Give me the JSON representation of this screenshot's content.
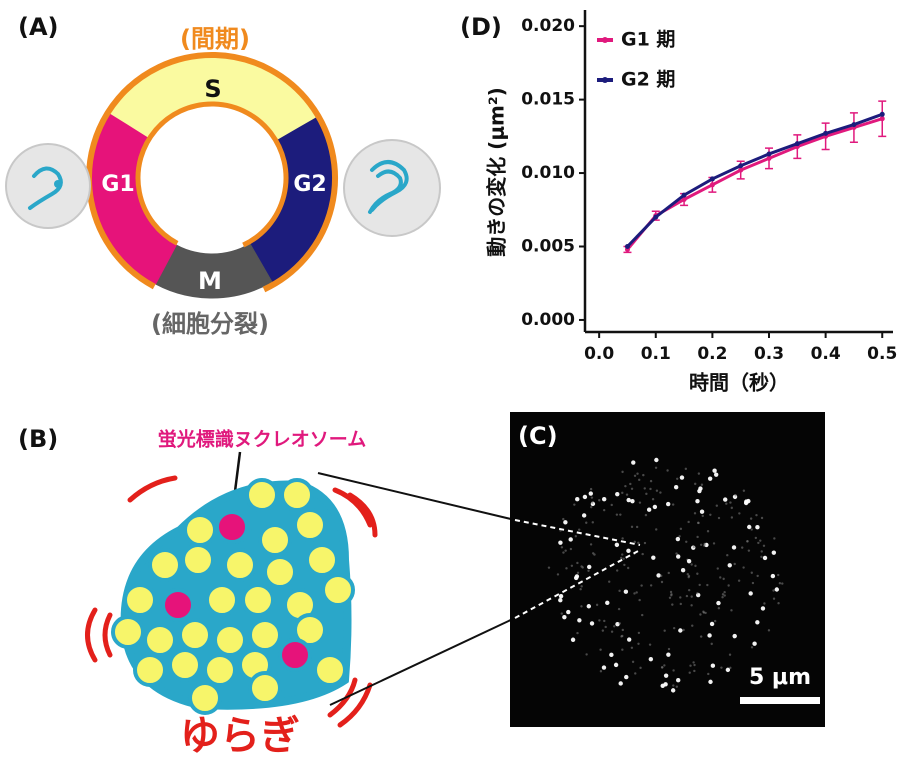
{
  "panels": {
    "a": {
      "label": "(A)",
      "interphase": "(間期)",
      "s": "S",
      "g1": "G1",
      "g2": "G2",
      "m": "M",
      "mitosis": "(細胞分裂)"
    },
    "b": {
      "label": "(B)",
      "callout": "蛍光標識ヌクレオソーム",
      "fluctuation": "ゆらぎ"
    },
    "c": {
      "label": "(C)",
      "scale_bar": "5 μm"
    }
  },
  "chart_data": {
    "type": "line",
    "panel_label": "(D)",
    "xlabel": "時間（秒）",
    "ylabel": "動きの変化 (μm²)",
    "x": [
      0.05,
      0.1,
      0.15,
      0.2,
      0.25,
      0.3,
      0.35,
      0.4,
      0.45,
      0.5
    ],
    "series": [
      {
        "name": "G1 期",
        "color": "#e0197d",
        "values": [
          0.0048,
          0.0071,
          0.0082,
          0.0092,
          0.0102,
          0.011,
          0.0118,
          0.0125,
          0.0131,
          0.0137
        ],
        "errors": [
          0.0002,
          0.0003,
          0.0004,
          0.0005,
          0.0006,
          0.0007,
          0.0008,
          0.0009,
          0.001,
          0.0012
        ]
      },
      {
        "name": "G2 期",
        "color": "#1c1c7c",
        "values": [
          0.005,
          0.007,
          0.0085,
          0.0096,
          0.0105,
          0.0113,
          0.012,
          0.0127,
          0.0133,
          0.014
        ]
      }
    ],
    "xlim": [
      -0.025,
      0.519
    ],
    "ylim": [
      -0.00082,
      0.0211
    ],
    "xticks": [
      {
        "value": 0,
        "label": "0.0"
      },
      0.1,
      0.2,
      0.3,
      0.4,
      0.5
    ],
    "yticks": [
      {
        "value": 0,
        "label": "0.000"
      },
      0.005,
      {
        "value": 0.01,
        "label": "0.010"
      },
      0.015,
      {
        "value": 0.02,
        "label": "0.020"
      }
    ],
    "legend": "upper left"
  }
}
